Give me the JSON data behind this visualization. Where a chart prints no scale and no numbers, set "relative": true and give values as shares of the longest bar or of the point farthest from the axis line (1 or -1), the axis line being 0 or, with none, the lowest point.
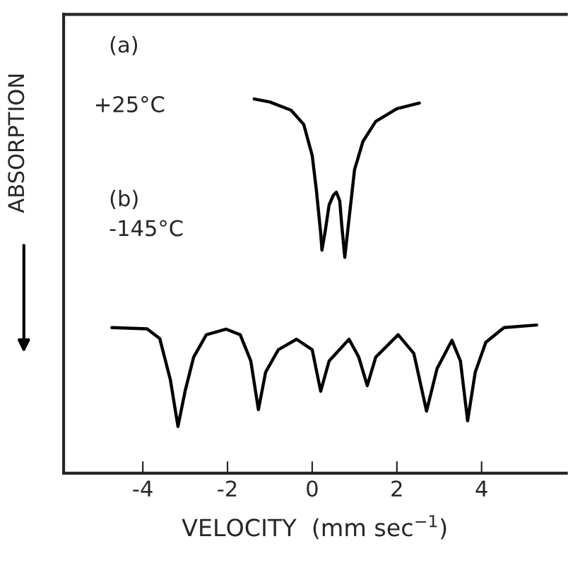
{
  "chart_data": {
    "type": "line",
    "relative": true,
    "xlabel": "VELOCITY  (mm sec$^{−1}$)",
    "ylabel": "ABSORPTION",
    "xlim": [
      -5.87,
      6.0
    ],
    "xticks": [
      -4,
      -2,
      0,
      2,
      4
    ],
    "tick_labels": "x",
    "grid": false,
    "legend": false,
    "marker": "none",
    "line_style": "solid",
    "annotations": [
      "(a)",
      "+25°C",
      "(b)",
      "-145°C"
    ],
    "series": [
      {
        "color": "#000000",
        "x": [
          -1.37,
          -1.0,
          -0.5,
          -0.2,
          0.0,
          0.1,
          0.2,
          0.23,
          0.3,
          0.4,
          0.5,
          0.57,
          0.65,
          0.7,
          0.77,
          0.85,
          1.0,
          1.2,
          1.5,
          2.0,
          2.53
        ],
        "values": [
          1.0,
          0.992,
          0.97,
          0.932,
          0.849,
          0.755,
          0.642,
          0.596,
          0.642,
          0.717,
          0.743,
          0.751,
          0.728,
          0.66,
          0.577,
          0.66,
          0.811,
          0.887,
          0.94,
          0.974,
          0.989
        ]
      },
      {
        "color": "#000000",
        "x": [
          -4.73,
          -3.9,
          -3.6,
          -3.35,
          -3.17,
          -3.0,
          -2.8,
          -2.5,
          -2.03,
          -1.7,
          -1.45,
          -1.27,
          -1.1,
          -0.8,
          -0.37,
          0.0,
          0.2,
          0.4,
          0.87,
          1.1,
          1.3,
          1.5,
          2.03,
          2.4,
          2.7,
          2.95,
          3.3,
          3.5,
          3.67,
          3.85,
          4.1,
          4.53,
          5.3
        ],
        "values": [
          0.389,
          0.386,
          0.36,
          0.25,
          0.125,
          0.22,
          0.31,
          0.37,
          0.385,
          0.37,
          0.3,
          0.17,
          0.27,
          0.33,
          0.358,
          0.33,
          0.219,
          0.3,
          0.358,
          0.31,
          0.234,
          0.31,
          0.37,
          0.32,
          0.166,
          0.28,
          0.355,
          0.3,
          0.14,
          0.27,
          0.35,
          0.389,
          0.396
        ]
      }
    ]
  }
}
